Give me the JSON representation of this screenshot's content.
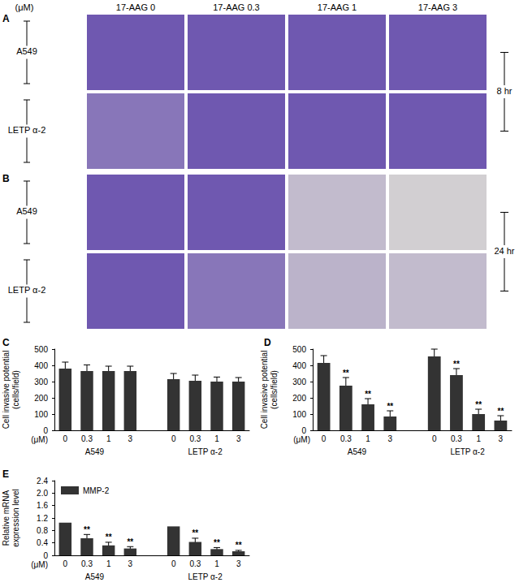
{
  "image_panels": {
    "unit_label": "(μM)",
    "columns": [
      "17-AAG 0",
      "17-AAG 0.3",
      "17-AAG 1",
      "17-AAG 3"
    ],
    "panels": [
      {
        "letter": "A",
        "rows": [
          "A549",
          "LETP α-2"
        ],
        "time": "8 hr"
      },
      {
        "letter": "B",
        "rows": [
          "A549",
          "LETP α-2"
        ],
        "time": "24 hr"
      }
    ]
  },
  "chart_data": [
    {
      "type": "bar",
      "title": "C",
      "xlabel": "(μM)",
      "ylabel": [
        "Cell invasive potential",
        "(cells/field)"
      ],
      "groups": [
        "A549",
        "LETP α-2"
      ],
      "categories": [
        "0",
        "0.3",
        "1",
        "3",
        null,
        "0",
        "0.3",
        "1",
        "3"
      ],
      "values": [
        380,
        365,
        365,
        365,
        null,
        315,
        305,
        300,
        300
      ],
      "errors": [
        40,
        38,
        30,
        30,
        null,
        35,
        35,
        28,
        25
      ],
      "color": "#333333",
      "ylim": [
        0,
        500
      ],
      "yticks": [
        0,
        100,
        200,
        300,
        400,
        500
      ],
      "grid": false
    },
    {
      "type": "bar",
      "title": "D",
      "xlabel": "(μM)",
      "ylabel": [
        "Cell invasive potential",
        "(cells/field)"
      ],
      "groups": [
        "A549",
        "LETP α-2"
      ],
      "categories": [
        "0",
        "0.3",
        "1",
        "3",
        null,
        "0",
        "0.3",
        "1",
        "3"
      ],
      "values": [
        415,
        275,
        160,
        85,
        null,
        455,
        340,
        100,
        60
      ],
      "errors": [
        45,
        50,
        35,
        35,
        null,
        45,
        40,
        30,
        30
      ],
      "significance": [
        null,
        "**",
        "**",
        "**",
        null,
        null,
        "**",
        "**",
        "**"
      ],
      "color": "#333333",
      "ylim": [
        0,
        500
      ],
      "yticks": [
        0,
        100,
        200,
        300,
        400,
        500
      ],
      "grid": false
    },
    {
      "type": "bar",
      "title": "E",
      "xlabel": "(μM)",
      "ylabel": [
        "Relative mRNA",
        "expression level"
      ],
      "groups": [
        "A549",
        "LETP α-2"
      ],
      "categories": [
        "0",
        "0.3",
        "1",
        "3",
        null,
        "0",
        "0.3",
        "1",
        "3"
      ],
      "series": [
        {
          "name": "MMP-2",
          "color": "#333333",
          "values": [
            1.05,
            0.55,
            0.32,
            0.22,
            null,
            0.93,
            0.43,
            0.2,
            0.13
          ],
          "errors": [
            0,
            0.12,
            0.1,
            0.06,
            null,
            0,
            0.12,
            0.05,
            0.03
          ],
          "significance": [
            null,
            "**",
            "**",
            "**",
            null,
            null,
            "**",
            "**",
            "**"
          ]
        }
      ],
      "legend": "upper left",
      "ylim": [
        0,
        2.4
      ],
      "yticks": [
        0,
        0.4,
        0.8,
        1.2,
        1.6,
        {
          "value": 2,
          "label": "2.0"
        },
        2.4
      ],
      "grid": false
    }
  ]
}
